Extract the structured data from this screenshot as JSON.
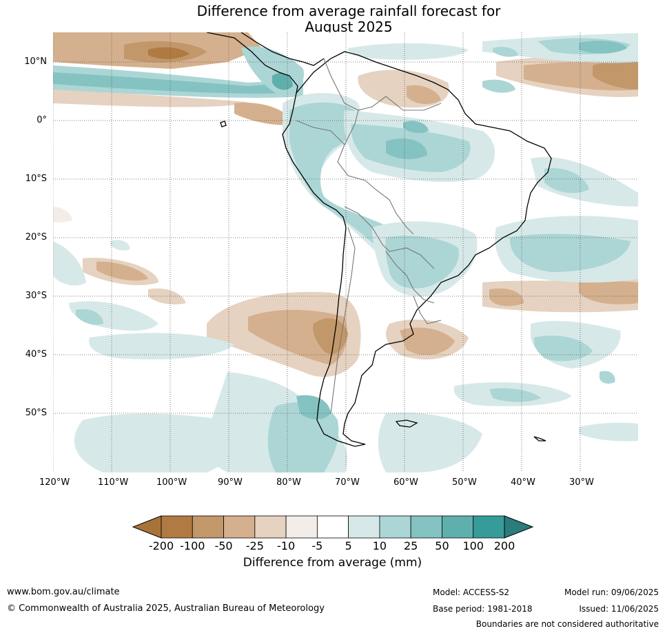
{
  "title_line1": "Difference from average rainfall forecast for",
  "title_line2": "August 2025",
  "latitude_labels": [
    "10°N",
    "0°",
    "10°S",
    "20°S",
    "30°S",
    "40°S",
    "50°S"
  ],
  "longitude_labels": [
    "120°W",
    "110°W",
    "100°W",
    "90°W",
    "80°W",
    "70°W",
    "60°W",
    "50°W",
    "40°W",
    "30°W"
  ],
  "colorbar": {
    "title": "Difference from average (mm)",
    "ticks": [
      "-200",
      "-100",
      "-50",
      "-25",
      "-10",
      "-5",
      "5",
      "10",
      "25",
      "50",
      "100",
      "200"
    ],
    "colors": [
      "#a8733a",
      "#b07a42",
      "#c2976a",
      "#d4b08e",
      "#e6d2c0",
      "#f2ede8",
      "#ffffff",
      "#d6e9e8",
      "#acd6d5",
      "#84c3c1",
      "#5fb0ad",
      "#369c99",
      "#2a7d7a"
    ]
  },
  "footer": {
    "website": "www.bom.gov.au/climate",
    "copyright": "© Commonwealth of Australia 2025, Australian Bureau of Meteorology",
    "model": "Model: ACCESS-S2",
    "base_period": "Base period: 1981-2018",
    "model_run": "Model run: 09/06/2025",
    "issued": "Issued: 11/06/2025",
    "disclaimer": "Boundaries are not considered authoritative"
  }
}
